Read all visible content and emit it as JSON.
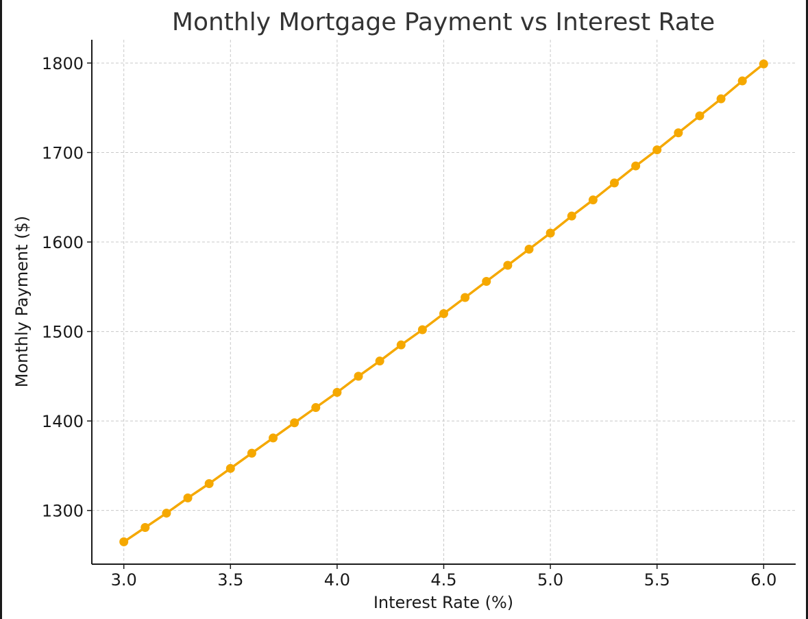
{
  "chart_data": {
    "type": "line",
    "title": "Monthly Mortgage Payment vs Interest Rate",
    "xlabel": "Interest Rate (%)",
    "ylabel": "Monthly Payment ($)",
    "xlim": [
      2.85,
      6.15
    ],
    "ylim": [
      1240,
      1826
    ],
    "x_ticks": [
      3.0,
      3.5,
      4.0,
      4.5,
      5.0,
      5.5,
      6.0
    ],
    "x_tick_labels": [
      "3.0",
      "3.5",
      "4.0",
      "4.5",
      "5.0",
      "5.5",
      "6.0"
    ],
    "y_ticks": [
      1300,
      1400,
      1500,
      1600,
      1700,
      1800
    ],
    "y_tick_labels": [
      "1300",
      "1400",
      "1500",
      "1600",
      "1700",
      "1800"
    ],
    "grid": true,
    "line_color": "#f5a800",
    "marker": "circle",
    "series": [
      {
        "x": [
          3.0,
          3.1,
          3.2,
          3.3,
          3.4,
          3.5,
          3.6,
          3.7,
          3.8,
          3.9,
          4.0,
          4.1,
          4.2,
          4.3,
          4.4,
          4.5,
          4.6,
          4.7,
          4.8,
          4.9,
          5.0,
          5.1,
          5.2,
          5.3,
          5.4,
          5.5,
          5.6,
          5.7,
          5.8,
          5.9,
          6.0
        ],
        "values": [
          1265,
          1281,
          1297,
          1314,
          1330,
          1347,
          1364,
          1381,
          1398,
          1415,
          1432,
          1450,
          1467,
          1485,
          1502,
          1520,
          1538,
          1556,
          1574,
          1592,
          1610,
          1629,
          1647,
          1666,
          1685,
          1703,
          1722,
          1741,
          1760,
          1780,
          1799
        ]
      }
    ]
  }
}
